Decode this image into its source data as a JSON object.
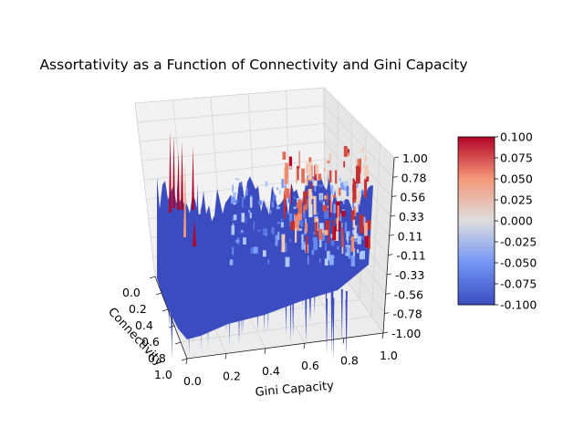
{
  "chart_data": {
    "type": "surface3d",
    "title": "Assortativity as a Function of Connectivity and Gini Capacity",
    "xlabel": "Connectivity",
    "ylabel": "Gini Capacity",
    "zlabel": "",
    "xlim": [
      0,
      1
    ],
    "ylim": [
      0,
      1
    ],
    "zlim": [
      -1,
      1
    ],
    "x_ticks": [
      "0.0",
      "0.2",
      "0.4",
      "0.6",
      "0.8",
      "1.0"
    ],
    "y_ticks": [
      "0.0",
      "0.2",
      "0.4",
      "0.6",
      "0.8",
      "1.0"
    ],
    "z_ticks": [
      "-1.00",
      "-0.78",
      "-0.56",
      "-0.33",
      "-0.11",
      "0.11",
      "0.33",
      "0.56",
      "0.78",
      "1.00"
    ],
    "colormap": "coolwarm",
    "colorbar": {
      "range": [
        -0.1,
        0.1
      ],
      "ticks": [
        "0.100",
        "0.075",
        "0.050",
        "0.025",
        "0.000",
        "-0.025",
        "-0.050",
        "-0.075",
        "-0.100"
      ],
      "colors": {
        "low": "#3b4cc0",
        "mid": "#dddddd",
        "high": "#b40426"
      }
    },
    "grid": true
  }
}
